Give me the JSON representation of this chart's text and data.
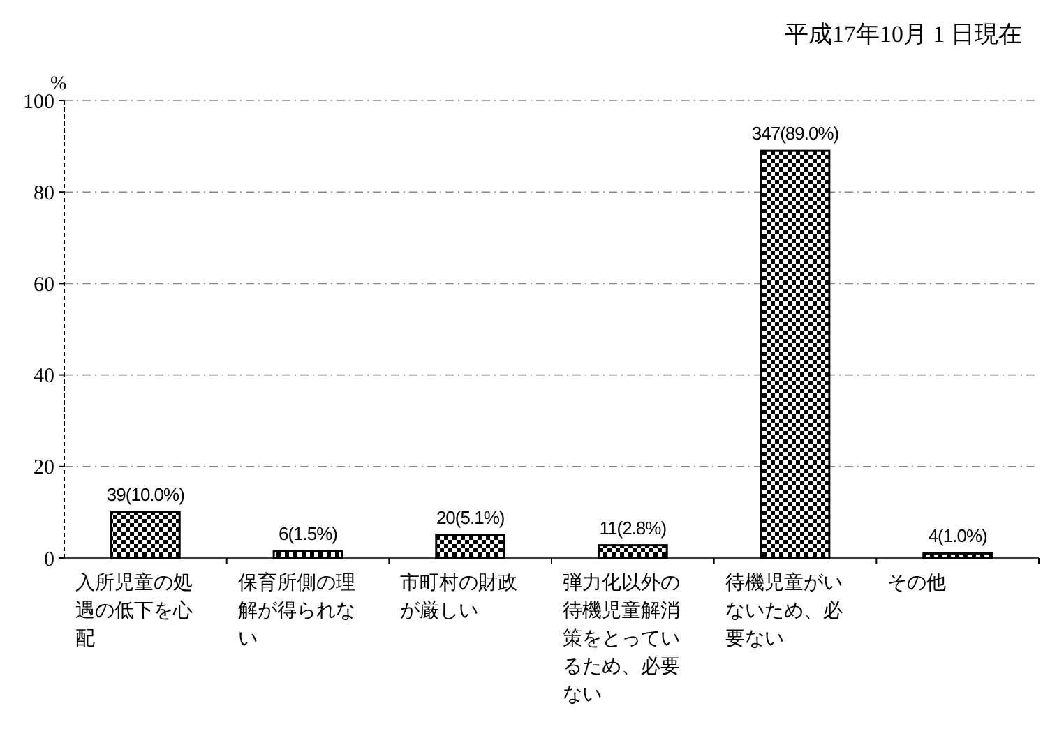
{
  "chart_data": {
    "type": "bar",
    "title": "平成17年10月 1 日現在",
    "ylabel": "%",
    "categories": [
      "入所児童の処遇の低下を心配",
      "保育所側の理解が得られない",
      "市町村の財政が厳しい",
      "弾力化以外の待機児童解消策をとっているため、必要ない",
      "待機児童がいないため、必要ない",
      "その他"
    ],
    "values": [
      10.0,
      1.5,
      5.1,
      2.8,
      89.0,
      1.0
    ],
    "value_labels": [
      "39(10.0%)",
      "6(1.5%)",
      "20(5.1%)",
      "11(2.8%)",
      "347(89.0%)",
      "4(1.0%)"
    ],
    "color": "#000000",
    "ylim": [
      0,
      100
    ],
    "yticks": [
      0,
      20,
      40,
      60,
      80,
      100
    ],
    "grid": "y"
  }
}
